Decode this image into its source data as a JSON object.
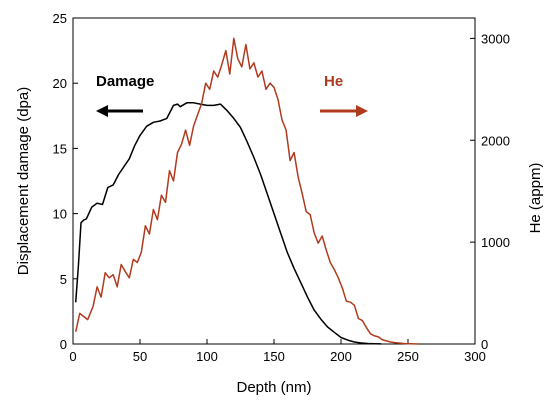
{
  "chart_data": {
    "type": "line",
    "xlabel": "Depth (nm)",
    "ylabel_left": "Displacement damage (dpa)",
    "ylabel_right": "He (appm)",
    "xlim": [
      0,
      300
    ],
    "ylim_left": [
      0,
      25
    ],
    "ylim_right": [
      0,
      3200
    ],
    "x_ticks": [
      "0",
      "50",
      "100",
      "150",
      "200",
      "250",
      "300"
    ],
    "y_left_ticks": [
      "0",
      "5",
      "10",
      "15",
      "20",
      "25"
    ],
    "y_right_ticks": [
      "0",
      "1000",
      "2000",
      "3000"
    ],
    "grid": false,
    "annotations": {
      "damage": {
        "text": "Damage",
        "color": "#000000",
        "arrow": "left"
      },
      "he": {
        "text": "He",
        "color": "#b03a1e",
        "arrow": "right"
      }
    },
    "series": [
      {
        "name": "Damage",
        "axis": "left",
        "color": "#000000",
        "x": [
          2,
          4,
          6,
          8,
          10,
          14,
          18,
          22,
          26,
          30,
          34,
          38,
          42,
          46,
          50,
          55,
          60,
          65,
          70,
          75,
          78,
          80,
          85,
          90,
          95,
          100,
          105,
          110,
          115,
          120,
          125,
          130,
          135,
          140,
          145,
          150,
          155,
          160,
          165,
          170,
          175,
          180,
          185,
          190,
          195,
          200,
          205,
          210,
          215,
          220,
          225,
          230
        ],
        "y": [
          3.2,
          6,
          9.3,
          9.5,
          9.6,
          10.5,
          10.8,
          10.7,
          12,
          12.2,
          13,
          13.6,
          14.2,
          15.2,
          16,
          16.7,
          17,
          17.1,
          17.3,
          18.3,
          18.4,
          18.2,
          18.5,
          18.5,
          18.4,
          18.3,
          18.3,
          18.4,
          17.9,
          17.3,
          16.6,
          15.5,
          14.3,
          13,
          11.5,
          10,
          8.5,
          7,
          5.8,
          4.7,
          3.6,
          2.6,
          1.9,
          1.3,
          0.9,
          0.5,
          0.3,
          0.15,
          0.08,
          0.04,
          0.02,
          0.01
        ]
      },
      {
        "name": "He",
        "axis": "right",
        "color": "#b03a1e",
        "x": [
          2,
          5,
          8,
          11,
          15,
          18,
          21,
          24,
          27,
          30,
          33,
          36,
          39,
          42,
          45,
          48,
          51,
          54,
          57,
          60,
          63,
          66,
          69,
          72,
          75,
          78,
          81,
          84,
          87,
          90,
          93,
          96,
          99,
          102,
          105,
          108,
          111,
          114,
          117,
          120,
          123,
          126,
          129,
          132,
          135,
          138,
          141,
          144,
          147,
          150,
          153,
          156,
          159,
          162,
          165,
          168,
          171,
          174,
          177,
          180,
          183,
          186,
          189,
          192,
          195,
          198,
          201,
          204,
          207,
          210,
          213,
          216,
          219,
          222,
          225,
          228,
          231,
          234,
          237,
          240,
          243,
          246,
          249,
          252,
          255,
          258
        ],
        "y": [
          120,
          300,
          270,
          240,
          370,
          560,
          460,
          700,
          650,
          680,
          560,
          780,
          710,
          650,
          830,
          800,
          900,
          1160,
          1080,
          1320,
          1220,
          1460,
          1390,
          1700,
          1600,
          1880,
          1960,
          2100,
          1950,
          2140,
          2250,
          2360,
          2560,
          2500,
          2680,
          2620,
          2740,
          2880,
          2650,
          3000,
          2800,
          2720,
          2940,
          2700,
          2760,
          2620,
          2680,
          2500,
          2560,
          2520,
          2400,
          2200,
          2100,
          1800,
          1880,
          1640,
          1480,
          1300,
          1270,
          1090,
          990,
          1060,
          920,
          800,
          730,
          650,
          550,
          420,
          410,
          380,
          250,
          230,
          160,
          100,
          80,
          70,
          40,
          30,
          20,
          14,
          10,
          6,
          3,
          2,
          1,
          0
        ]
      }
    ]
  }
}
